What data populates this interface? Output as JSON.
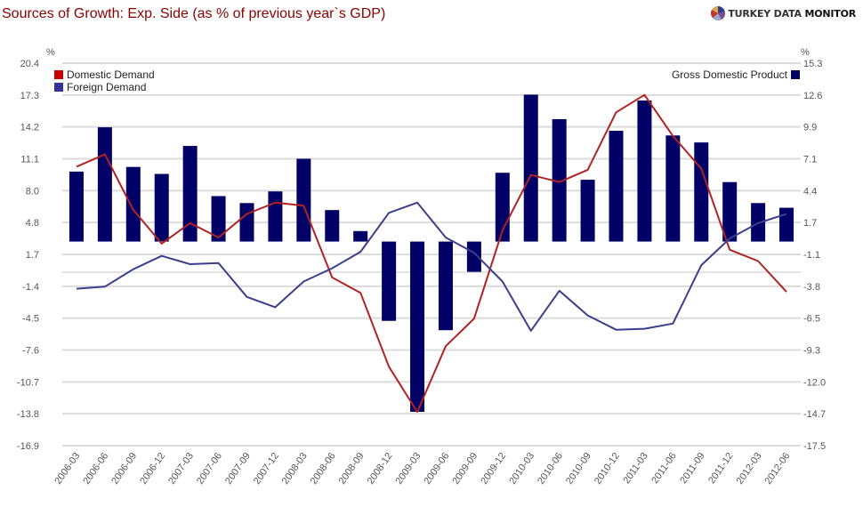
{
  "header": {
    "title": "Sources of Growth: Exp. Side (as % of previous year`s GDP)",
    "brand_part1": "TURKEY DATA ",
    "brand_part2": "MONITOR",
    "brand_icon": "pie-chart-logo-icon"
  },
  "chart_data": {
    "type": "bar+line",
    "title": "Sources of Growth: Exp. Side (as % of previous year`s GDP)",
    "categories": [
      "2006-03",
      "2006-06",
      "2006-09",
      "2006-12",
      "2007-03",
      "2007-06",
      "2007-09",
      "2007-12",
      "2008-03",
      "2008-06",
      "2008-09",
      "2008-12",
      "2009-03",
      "2009-06",
      "2009-09",
      "2009-12",
      "2010-03",
      "2010-06",
      "2010-09",
      "2010-12",
      "2011-03",
      "2011-06",
      "2011-09",
      "2011-12",
      "2012-03",
      "2012-06"
    ],
    "left_axis": {
      "unit_label": "%",
      "ticks": [
        "20.4",
        "17.3",
        "14.2",
        "11.1",
        "8.0",
        "4.8",
        "1.7",
        "-1.4",
        "-4.5",
        "-7.6",
        "-10.7",
        "-13.8",
        "-16.9"
      ],
      "range": [
        -16.9,
        20.4
      ]
    },
    "right_axis": {
      "unit_label": "%",
      "ticks": [
        "15.3",
        "12.6",
        "9.9",
        "7.1",
        "4.4",
        "1.7",
        "-1.1",
        "-3.8",
        "-6.5",
        "-9.3",
        "-12.0",
        "-14.7",
        "-17.5"
      ],
      "range": [
        -17.5,
        15.3
      ]
    },
    "grid": true,
    "series": [
      {
        "name": "Domestic Demand",
        "type": "line",
        "axis": "left",
        "color": "#b22222",
        "legend_color": "#cc0000",
        "values": [
          10.3,
          11.5,
          6.1,
          2.8,
          4.8,
          3.4,
          5.7,
          6.8,
          6.5,
          -0.5,
          -2.0,
          -9.2,
          -13.6,
          -7.2,
          -4.5,
          4.1,
          9.5,
          8.8,
          10.0,
          15.6,
          17.3,
          13.3,
          10.1,
          2.2,
          1.1,
          -1.9
        ]
      },
      {
        "name": "Foreign Demand",
        "type": "line",
        "axis": "left",
        "color": "#3b3f8c",
        "legend_color": "#333399",
        "values": [
          -1.6,
          -1.4,
          0.3,
          1.6,
          0.8,
          0.9,
          -2.4,
          -3.4,
          -0.9,
          0.4,
          2.0,
          5.8,
          6.8,
          3.4,
          1.9,
          -0.9,
          -5.7,
          -1.8,
          -4.2,
          -5.6,
          -5.5,
          -5.0,
          0.7,
          3.3,
          4.8,
          5.7
        ]
      },
      {
        "name": "Gross Domestic Product",
        "type": "bar",
        "axis": "right",
        "color": "#000066",
        "values": [
          6.0,
          9.8,
          6.4,
          5.8,
          8.2,
          3.9,
          3.3,
          4.3,
          7.1,
          2.7,
          0.9,
          -6.8,
          -14.6,
          -7.6,
          -2.6,
          5.9,
          12.6,
          10.5,
          5.3,
          9.5,
          12.1,
          9.1,
          8.5,
          5.1,
          3.3,
          2.9
        ]
      }
    ],
    "legend": [
      {
        "label": "Domestic Demand",
        "position": "top-left"
      },
      {
        "label": "Foreign Demand",
        "position": "top-left"
      },
      {
        "label": "Gross Domestic Product",
        "position": "top-right"
      }
    ],
    "xlabel": "",
    "ylabel_left": "%",
    "ylabel_right": "%"
  }
}
